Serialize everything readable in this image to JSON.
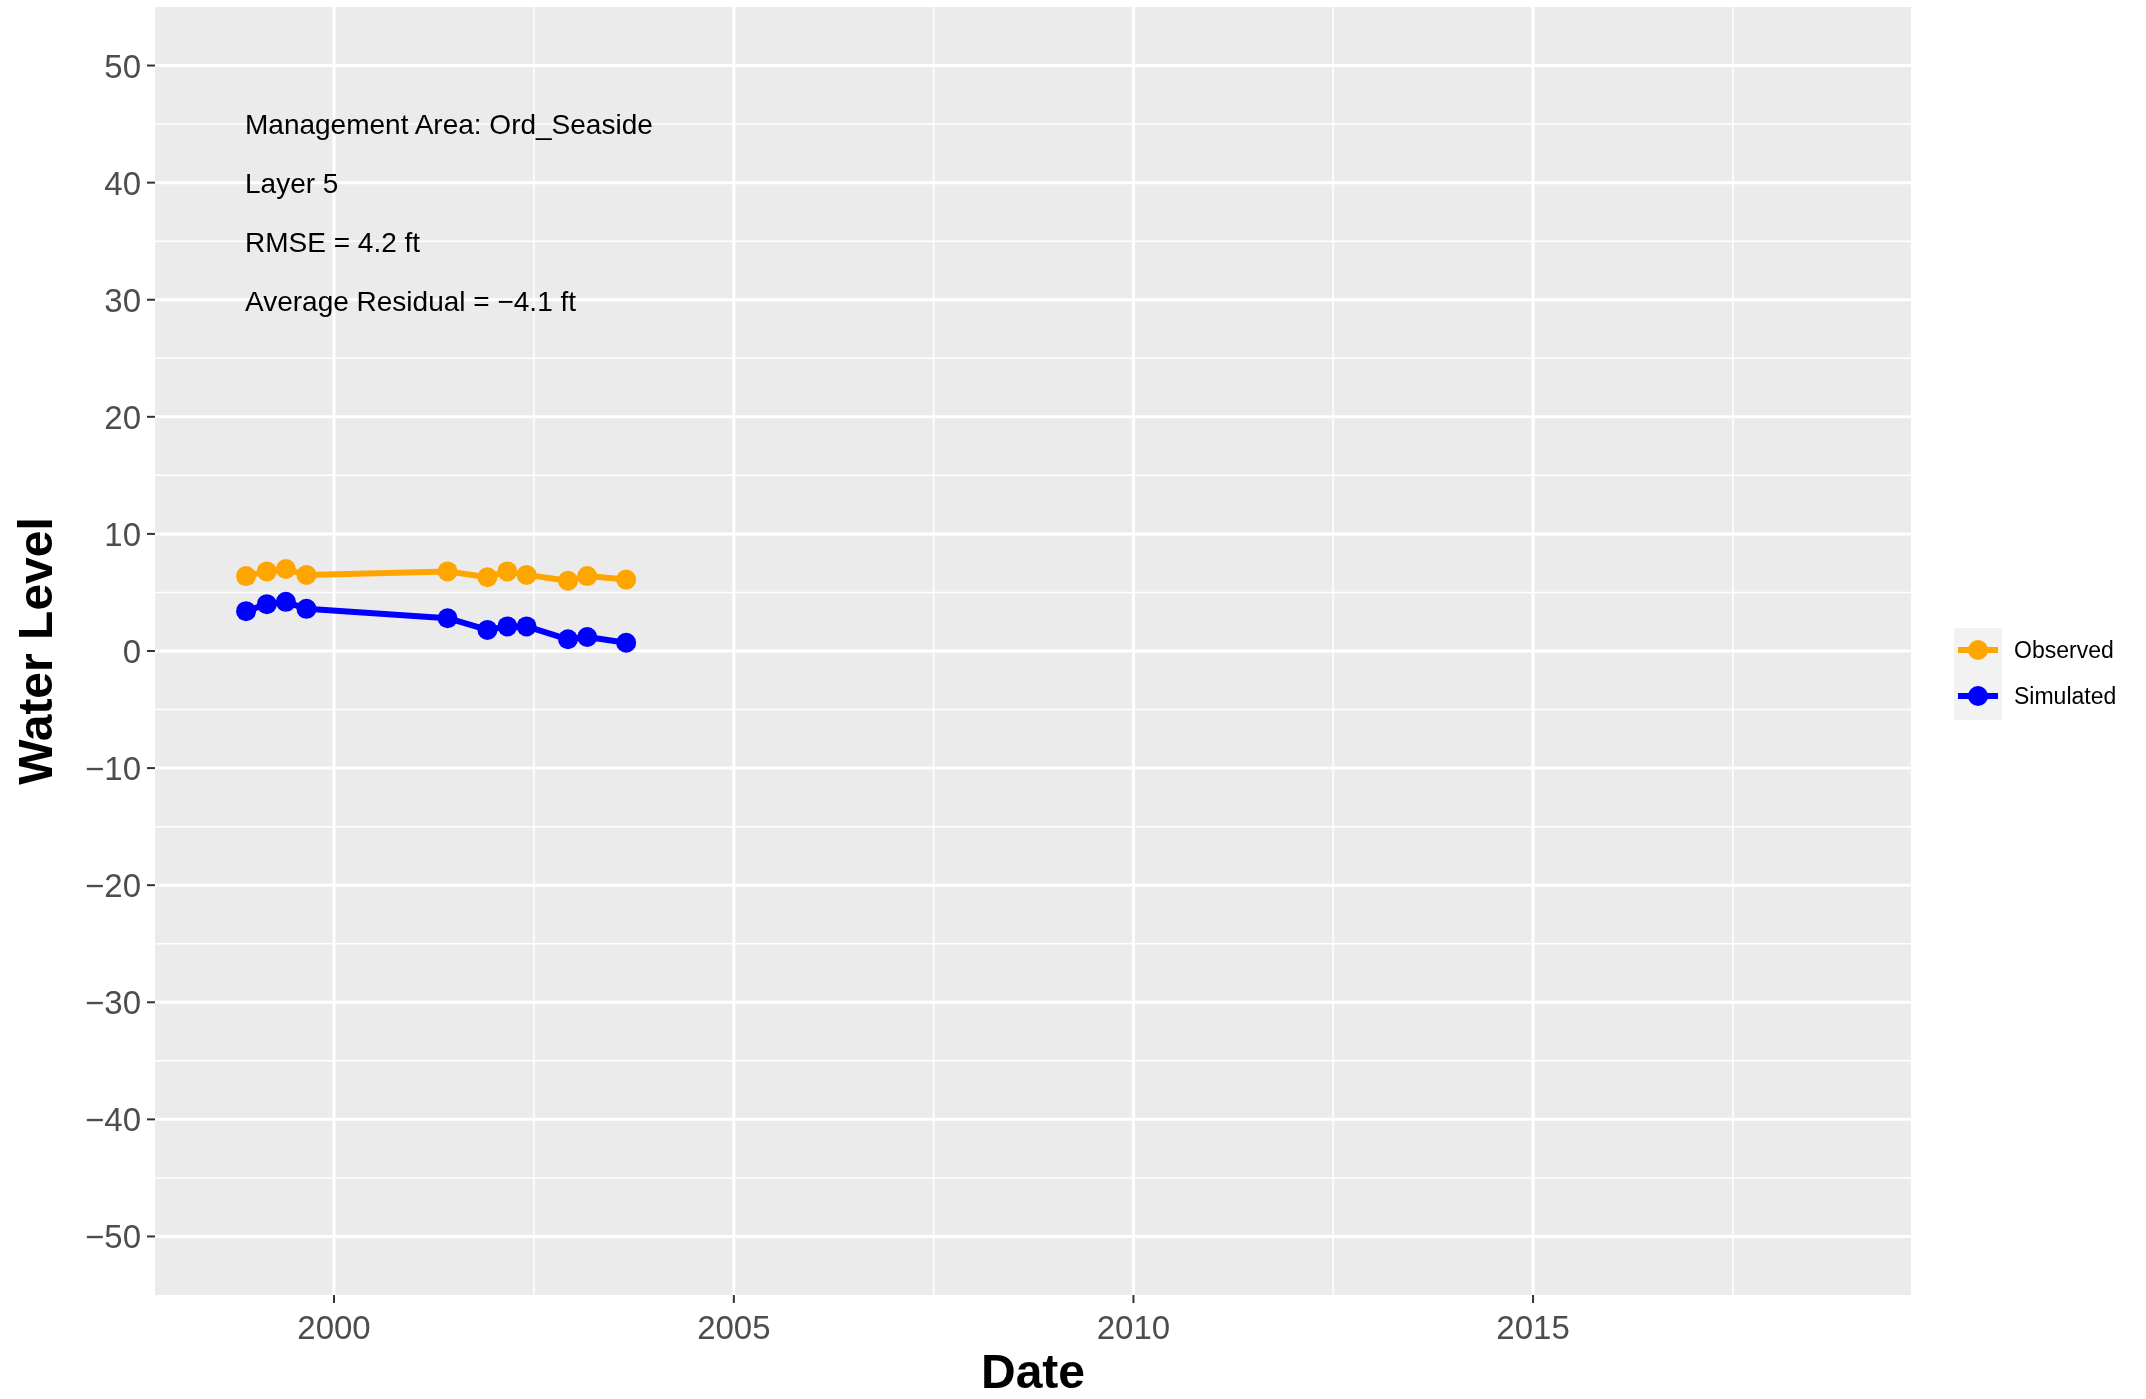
{
  "chart_data": {
    "type": "line",
    "xlabel": "Date",
    "ylabel": "Water Level",
    "annotations": [
      "Management Area:  Ord_Seaside",
      "Layer 5",
      "RMSE = 4.2 ft",
      "Average Residual = −4.1 ft"
    ],
    "x": [
      "1998-11-25",
      "1999-02-28",
      "1999-05-26",
      "1999-08-28",
      "2001-06-03",
      "2001-12-02",
      "2002-03-03",
      "2002-05-30",
      "2002-12-05",
      "2003-03-03",
      "2003-08-28"
    ],
    "series": [
      {
        "name": "Observed",
        "color": "#ffa500",
        "values": [
          6.4,
          6.8,
          7.0,
          6.5,
          6.8,
          6.3,
          6.8,
          6.5,
          6.0,
          6.4,
          6.1
        ]
      },
      {
        "name": "Simulated",
        "color": "#0000ff",
        "values": [
          3.4,
          4.0,
          4.2,
          3.6,
          2.8,
          1.8,
          2.1,
          2.1,
          1.0,
          1.2,
          0.7
        ]
      }
    ],
    "xlim": [
      "1997-10-05",
      "2019-09-24"
    ],
    "xticks": [
      {
        "value": "2000-01-01",
        "label": "2000"
      },
      {
        "value": "2005-01-01",
        "label": "2005"
      },
      {
        "value": "2010-01-01",
        "label": "2010"
      },
      {
        "value": "2015-01-01",
        "label": "2015"
      }
    ],
    "ylim": [
      -55,
      55
    ],
    "yticks": [
      {
        "value": -50,
        "label": "−50"
      },
      {
        "value": -40,
        "label": "−40"
      },
      {
        "value": -30,
        "label": "−30"
      },
      {
        "value": -20,
        "label": "−20"
      },
      {
        "value": -10,
        "label": "−10"
      },
      0,
      10,
      20,
      30,
      40,
      50
    ],
    "grid": true,
    "legend": "right",
    "marker": "circle",
    "line_style": "solid"
  }
}
